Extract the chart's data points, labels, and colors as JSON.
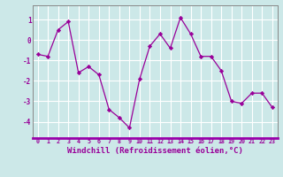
{
  "x": [
    0,
    1,
    2,
    3,
    4,
    5,
    6,
    7,
    8,
    9,
    10,
    11,
    12,
    13,
    14,
    15,
    16,
    17,
    18,
    19,
    20,
    21,
    22,
    23
  ],
  "y": [
    -0.7,
    -0.8,
    0.5,
    0.9,
    -1.6,
    -1.3,
    -1.7,
    -3.4,
    -3.8,
    -4.3,
    -1.9,
    -0.3,
    0.3,
    -0.4,
    1.1,
    0.3,
    -0.8,
    -0.8,
    -1.5,
    -3.0,
    -3.1,
    -2.6,
    -2.6,
    -3.3
  ],
  "line_color": "#990099",
  "marker": "D",
  "marker_size": 2.2,
  "xlabel": "Windchill (Refroidissement éolien,°C)",
  "xlabel_fontsize": 6.5,
  "yticks": [
    -4,
    -3,
    -2,
    -1,
    0,
    1
  ],
  "xticks": [
    0,
    1,
    2,
    3,
    4,
    5,
    6,
    7,
    8,
    9,
    10,
    11,
    12,
    13,
    14,
    15,
    16,
    17,
    18,
    19,
    20,
    21,
    22,
    23
  ],
  "xlim": [
    -0.5,
    23.5
  ],
  "ylim": [
    -4.8,
    1.7
  ],
  "bg_color": "#cce8e8",
  "grid_color": "#ffffff",
  "tick_color": "#990099",
  "label_color": "#990099",
  "spine_color": "#888888",
  "bottom_bar_color": "#9900aa"
}
